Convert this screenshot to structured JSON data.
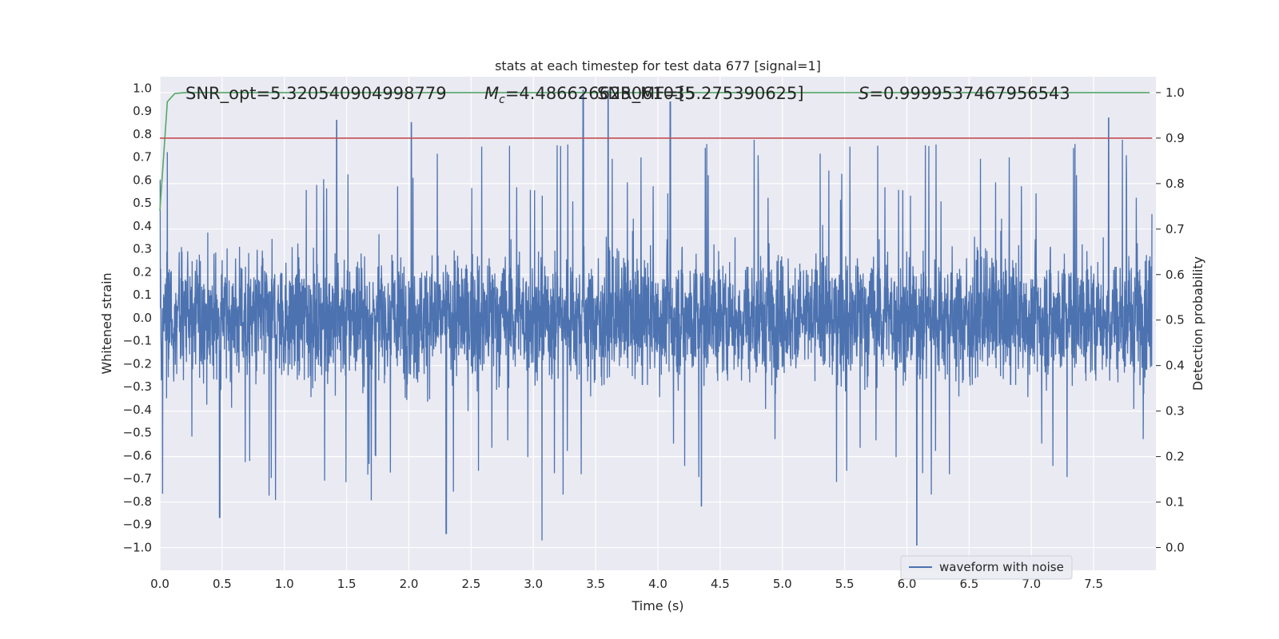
{
  "chart_data": {
    "type": "line",
    "title": "stats at each timestep for test data 677 [signal=1]",
    "xlabel": "Time (s)",
    "ylabel": "Whitened strain",
    "ylabel_right": "Detection probability",
    "xlim": [
      0.0,
      8.0
    ],
    "ylim": [
      -1.1,
      1.05
    ],
    "ylim_right": [
      -0.05,
      1.035
    ],
    "x_ticks": [
      "0.0",
      "0.5",
      "1.0",
      "1.5",
      "2.0",
      "2.5",
      "3.0",
      "3.5",
      "4.0",
      "4.5",
      "5.0",
      "5.5",
      "6.0",
      "6.5",
      "7.0",
      "7.5"
    ],
    "y_ticks": [
      "1.0",
      "0.9",
      "0.8",
      "0.7",
      "0.6",
      "0.5",
      "0.4",
      "0.3",
      "0.2",
      "0.1",
      "0.0",
      "-0.1",
      "-0.2",
      "-0.3",
      "-0.4",
      "-0.5",
      "-0.6",
      "-0.7",
      "-0.8",
      "-0.9",
      "-1.0"
    ],
    "y_ticks_right": [
      "1.0",
      "0.9",
      "0.8",
      "0.7",
      "0.6",
      "0.5",
      "0.4",
      "0.3",
      "0.2",
      "0.1",
      "0.0"
    ],
    "annotations": [
      {
        "text": "SNR_opt=5.320540904998779"
      },
      {
        "math_symbol": "M",
        "math_sub": "c",
        "text": "=4.486626625061035"
      },
      {
        "text": "SNR_MF=[5.275390625]"
      },
      {
        "math_symbol": "S",
        "text": "=0.9999537467956543"
      }
    ],
    "legend": {
      "position": "lower-center-right",
      "entries": [
        "waveform with noise"
      ]
    },
    "grid": true,
    "series": [
      {
        "name": "waveform with noise",
        "axis": "left",
        "color": "#4c72b0",
        "description_points": {
          "x": [
            0.0,
            0.48,
            1.42,
            2.02,
            2.3,
            3.07,
            3.4,
            3.6,
            4.1,
            4.35,
            6.08,
            7.62,
            7.97
          ],
          "y_extremes": [
            0.6,
            -0.87,
            0.86,
            0.85,
            -0.94,
            -0.97,
            0.99,
            0.99,
            0.94,
            -0.82,
            -0.99,
            0.87,
            0.45
          ]
        },
        "typical_envelope": [
          -0.4,
          0.4
        ]
      },
      {
        "name": "detection probability",
        "axis": "right",
        "color": "#55a868",
        "x": [
          0.0,
          0.06,
          0.12,
          0.2,
          1.0,
          2.0,
          3.0,
          4.0,
          5.0,
          6.0,
          7.0,
          7.95
        ],
        "values": [
          0.74,
          0.98,
          0.998,
          1.0,
          1.0,
          1.0,
          1.0,
          1.0,
          1.0,
          1.0,
          1.0,
          1.0
        ]
      },
      {
        "name": "threshold",
        "axis": "right",
        "color": "#c44e52",
        "x": [
          0.0,
          7.97
        ],
        "values": [
          0.9,
          0.9
        ]
      }
    ]
  },
  "colors": {
    "plot_background": "#eaeaf2",
    "grid": "#ffffff",
    "waveform": "#4c72b0",
    "probability": "#55a868",
    "threshold": "#c44e52"
  }
}
